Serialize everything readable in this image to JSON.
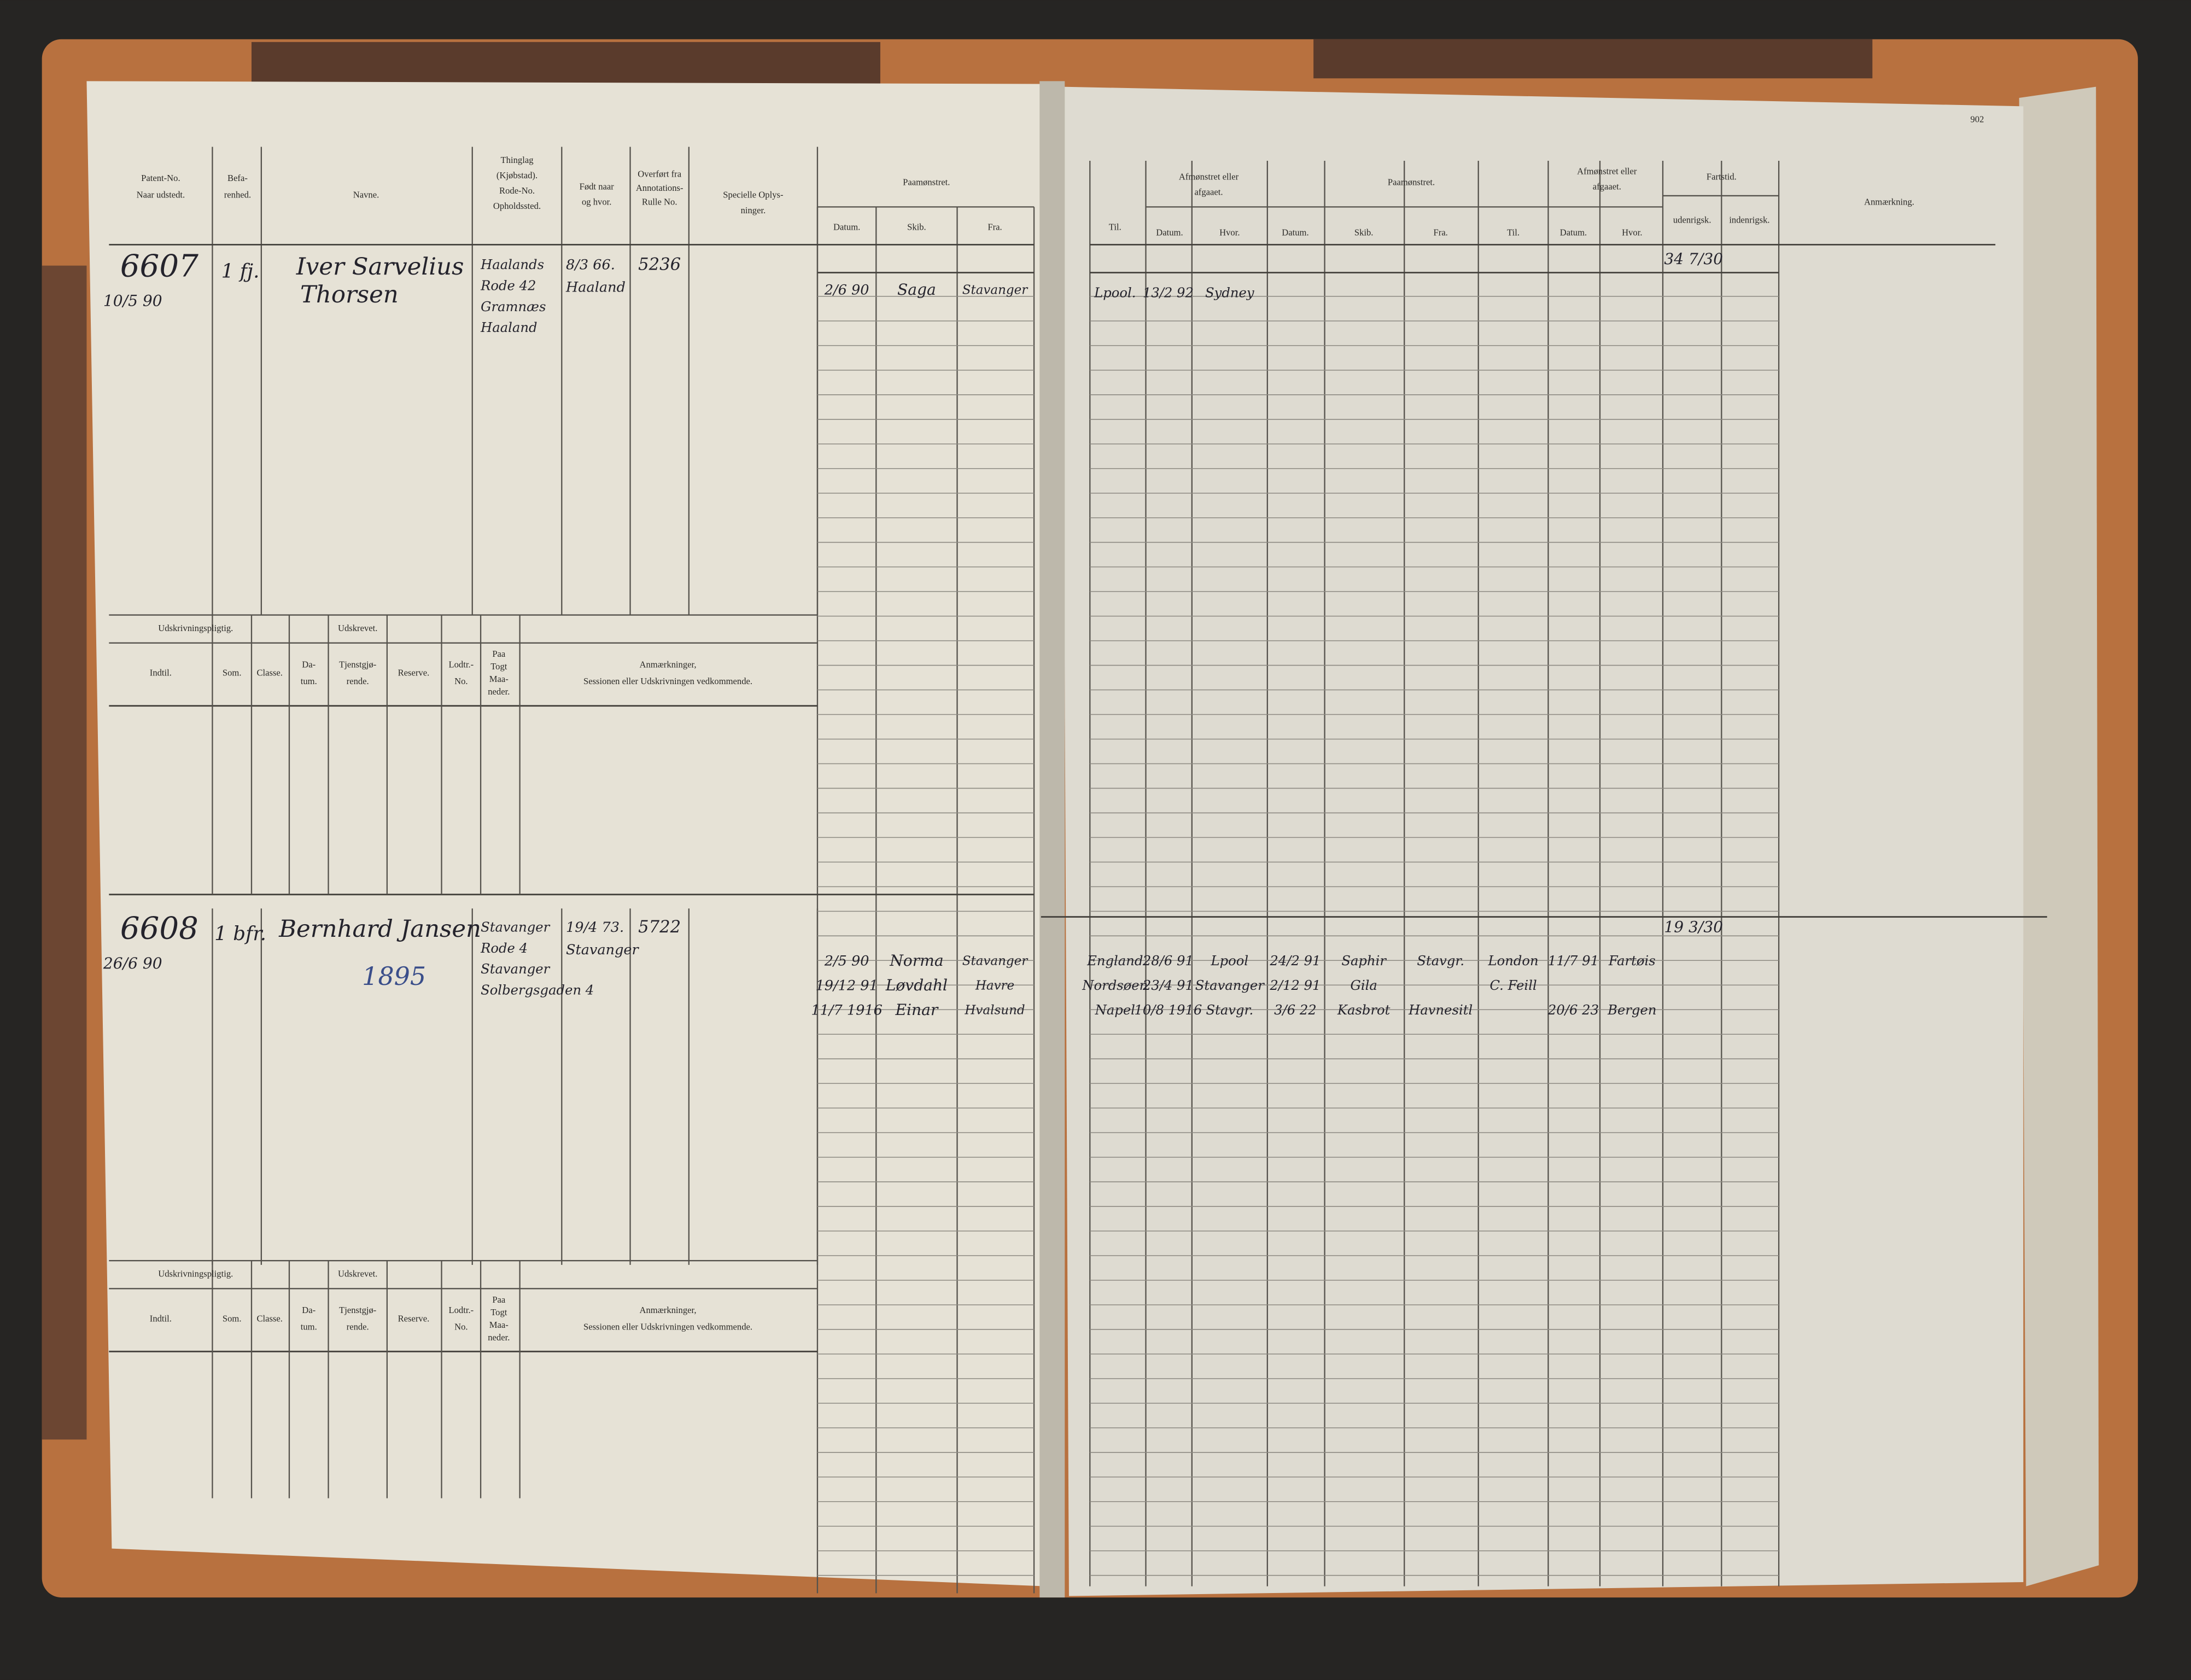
{
  "page_number": "902",
  "left_page": {
    "header": {
      "patent": [
        "Patent-No.",
        "Naar udstedt."
      ],
      "befarenhed": [
        "Befa-",
        "renhed."
      ],
      "navne": "Navne.",
      "thinglag": [
        "Thinglag",
        "(Kjøbstad).",
        "Rode-No.",
        "Opholdssted."
      ],
      "fodt": [
        "Født naar",
        "og hvor."
      ],
      "overfort": [
        "Overført fra",
        "Annotations-",
        "Rulle No."
      ],
      "specielle": [
        "Specielle Oplys-",
        "ninger."
      ],
      "paamonstret": "Paamønstret.",
      "paamonstret_columns": [
        "Datum.",
        "Skib.",
        "Fra."
      ]
    },
    "udskrivning_header": {
      "udskrivningspligtig": "Udskrivningspligtig.",
      "udskrevet": "Udskrevet.",
      "columns": [
        [
          "Indtil."
        ],
        [
          "Som."
        ],
        [
          "Classe."
        ],
        [
          "Da-",
          "tum."
        ],
        [
          "Tjenstgjø-",
          "rende."
        ],
        [
          "Reserve."
        ],
        [
          "Lodtr.-",
          "No."
        ],
        [
          "Paa",
          "Togt",
          "Maa-",
          "neder."
        ],
        [
          "Anmærkninger,",
          "Sessionen eller Udskrivningen vedkommende."
        ]
      ]
    },
    "entries": [
      {
        "patent_no": "6607",
        "date": "10/5 90",
        "befarenhed": "1 fj.",
        "name": [
          "Iver Sarvelius",
          "Thorsen"
        ],
        "thinglag": [
          "Haalands",
          "Rode 42",
          "Gramnæs",
          "Haaland"
        ],
        "fodt": [
          "8/3 66.",
          "Haaland"
        ],
        "annotation_no": "5236",
        "paamonstret": [
          {
            "datum": "2/6 90",
            "skib": "Saga",
            "fra": "Stavanger"
          }
        ]
      },
      {
        "patent_no": "6608",
        "date": "26/6 90",
        "befarenhed": "1 bfr.",
        "name": [
          "Bernhard Jansen"
        ],
        "note": "1895",
        "thinglag": [
          "Stavanger",
          "Rode 4",
          "Stavanger",
          "Solbergsgaden 4"
        ],
        "fodt": [
          "19/4 73.",
          "Stavanger"
        ],
        "annotation_no": "5722",
        "paamonstret": [
          {
            "datum": "2/5 90",
            "skib": "Norma",
            "fra": "Stavanger"
          },
          {
            "datum": "19/12 91",
            "skib": "Løvdahl",
            "fra": "Havre"
          },
          {
            "datum": "11/7 1916",
            "skib": "Einar",
            "fra": "Hvalsund"
          }
        ]
      }
    ]
  },
  "right_page": {
    "header": {
      "til": "Til.",
      "afmonstret": [
        "Afmønstret eller",
        "afgaaet."
      ],
      "afmonstret_columns": [
        "Datum.",
        "Hvor."
      ],
      "paamonstret": "Paamønstret.",
      "paamonstret_columns": [
        "Datum.",
        "Skib.",
        "Fra.",
        "Til."
      ],
      "afmonstret2": [
        "Afmønstret eller",
        "afgaaet."
      ],
      "afmonstret2_columns": [
        "Datum.",
        "Hvor."
      ],
      "fartstid": "Fartstid.",
      "fartstid_columns": [
        "udenrigsk.",
        "indenrigsk."
      ],
      "anmaerkning": "Anmærkning."
    },
    "entries": [
      {
        "rows": [
          {
            "til": "Lpool.",
            "datum": "13/2 92",
            "hvor": "Sydney"
          }
        ],
        "fartstid": "34 7/30"
      },
      {
        "rows": [
          {
            "til": "England",
            "datum": "28/6 91",
            "hvor": "Lpool",
            "p_datum": "24/2 91",
            "skib": "Saphir",
            "fra": "Stavgr.",
            "p_til": "London",
            "a_datum": "11/7 91",
            "a_hvor": "Fartøis"
          },
          {
            "til": "Nordsøen",
            "datum": "23/4 91",
            "hvor": "Stavanger",
            "p_datum": "2/12 91",
            "skib": "Gila",
            "p_til": "C. Feill"
          },
          {
            "til": "Napel",
            "datum": "10/8 1916",
            "hvor": "Stavgr.",
            "p_datum": "3/6 22",
            "skib": "Kasbrot",
            "fra": "Havnesitl",
            "a_datum": "20/6 23",
            "a_hvor": "Bergen"
          }
        ],
        "fartstid": "19 3/30"
      }
    ]
  }
}
